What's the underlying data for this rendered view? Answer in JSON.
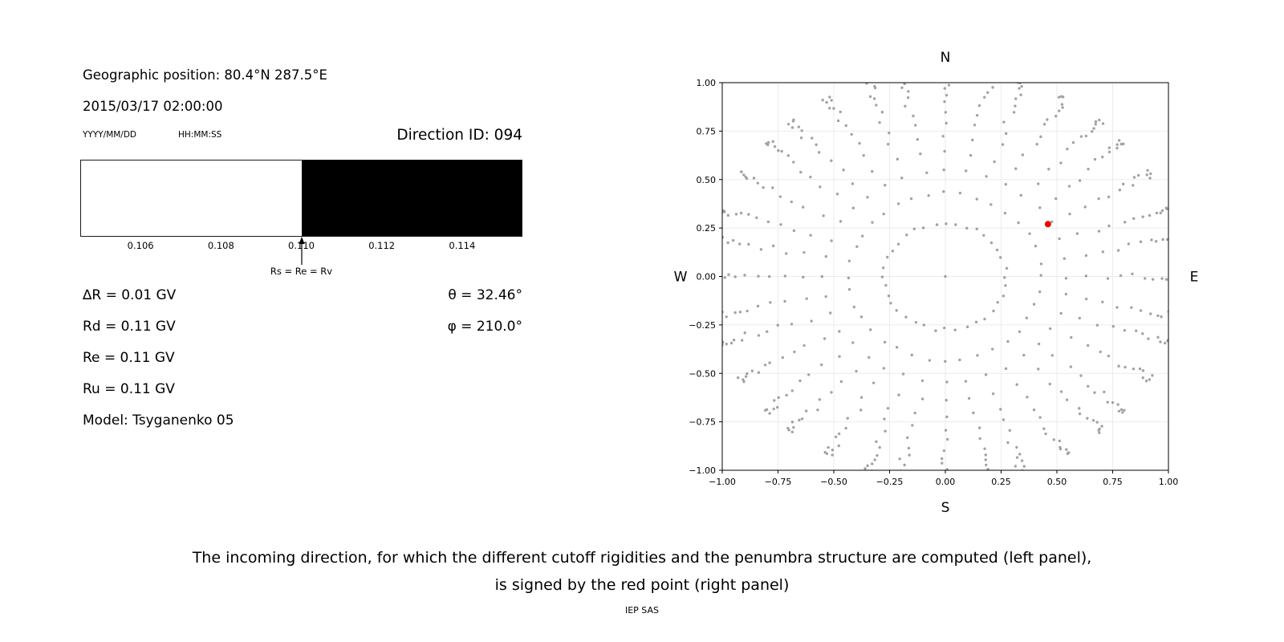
{
  "left": {
    "geographic_position": "Geographic position: 80.4°N 287.5°E",
    "datetime": "2015/03/17 02:00:00",
    "date_format": "YYYY/MM/DD",
    "time_format": "HH:MM:SS",
    "direction_id": "Direction ID: 094",
    "values": {
      "delta_r": "∆R = 0.01 GV",
      "rd": "Rd = 0.11 GV",
      "re": "Re = 0.11 GV",
      "ru": "Ru = 0.11 GV",
      "model": "Model: Tsyganenko 05",
      "theta": "θ = 32.46°",
      "phi": "φ = 210.0°"
    }
  },
  "caption": {
    "line1": "The incoming direction, for which the different cutoff rigidities and the penumbra structure are computed (left panel),",
    "line2": "is signed by the red point (right panel)",
    "credit": "IEP SAS"
  },
  "chart_data": [
    {
      "type": "area",
      "x_range": [
        0.1045,
        0.1155
      ],
      "regions": [
        {
          "from": 0.1045,
          "to": 0.11,
          "color": "#ffffff"
        },
        {
          "from": 0.11,
          "to": 0.1155,
          "color": "#000000"
        }
      ],
      "x_ticks": [
        {
          "value": 0.106,
          "label": "0.106"
        },
        {
          "value": 0.108,
          "label": "0.108"
        },
        {
          "value": 0.11,
          "label": "0.110"
        },
        {
          "value": 0.112,
          "label": "0.112"
        },
        {
          "value": 0.114,
          "label": "0.114"
        }
      ],
      "annotation": {
        "x": 0.11,
        "label": "Rs = Re = Rv"
      }
    },
    {
      "type": "scatter",
      "x_range": [
        -1,
        1
      ],
      "y_range": [
        -1,
        1
      ],
      "tick_values": [
        -1,
        -0.75,
        -0.5,
        -0.25,
        0,
        0.25,
        0.5,
        0.75,
        1
      ],
      "tick_labels": [
        "−1.00",
        "−0.75",
        "−0.50",
        "−0.25",
        "0.00",
        "0.25",
        "0.50",
        "0.75",
        "1.00"
      ],
      "compass_labels": {
        "top": "N",
        "bottom": "S",
        "left": "W",
        "right": "E"
      },
      "grid": true,
      "grid_color": "#ebebeb",
      "center_point": [
        0,
        0
      ],
      "series": [
        {
          "name": "direction-grid-dots",
          "color": "#8c8c8c",
          "marker_size": 1.7,
          "generator": {
            "azimuth_start_deg": 0,
            "azimuth_step_deg": 10,
            "azimuth_count": 36,
            "zenith_angles_deg": [
              15,
              24,
              31,
              37,
              43,
              48,
              53,
              58,
              62,
              66,
              70,
              74,
              78,
              82,
              86,
              89
            ],
            "radius_scale": 1.06,
            "radius_formula": "r = radius_scale * sin(zenith)"
          }
        },
        {
          "name": "selected-direction",
          "color": "#ee0000",
          "marker_size": 4,
          "points": [
            [
              0.46,
              0.27
            ]
          ]
        }
      ]
    }
  ]
}
